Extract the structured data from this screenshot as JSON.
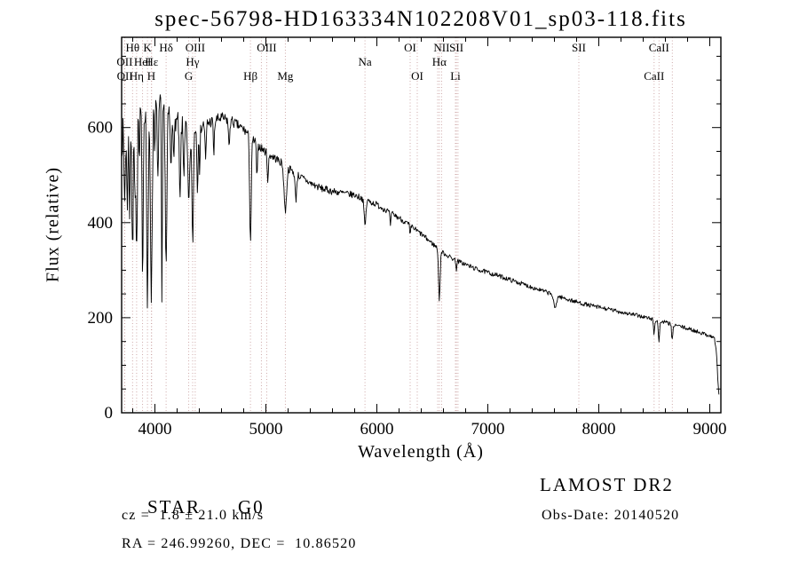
{
  "chart_data": {
    "type": "line",
    "title": "spec-56798-HD163334N102208V01_sp03-118.fits",
    "xlabel": "Wavelength (Å)",
    "ylabel": "Flux (relative)",
    "xlim": [
      3700,
      9100
    ],
    "ylim": [
      0,
      790
    ],
    "xticks": [
      4000,
      5000,
      6000,
      7000,
      8000,
      9000
    ],
    "yticks": [
      0,
      200,
      400,
      600
    ],
    "x_minor_step": 200,
    "y_minor_step": 50,
    "grid": false,
    "legend": "none",
    "spectrum_color": "#000000",
    "marker_line_color": "#c9a0a0",
    "line_label_rows": [
      {
        "labels": [
          {
            "text": "Hθ",
            "wl": 3798
          },
          {
            "text": "K",
            "wl": 3933
          },
          {
            "text": "Hδ",
            "wl": 4101
          },
          {
            "text": "OIII",
            "wl": 4363
          },
          {
            "text": "OIII",
            "wl": 5007
          },
          {
            "text": "OI",
            "wl": 6300
          },
          {
            "text": "NII",
            "wl": 6583
          },
          {
            "text": "SII",
            "wl": 6717
          },
          {
            "text": "SII",
            "wl": 7820
          },
          {
            "text": "CaII",
            "wl": 8542
          }
        ]
      },
      {
        "labels": [
          {
            "text": "OII",
            "wl": 3727
          },
          {
            "text": "HeI",
            "wl": 3889
          },
          {
            "text": "Hε",
            "wl": 3970
          },
          {
            "text": "Hγ",
            "wl": 4340
          },
          {
            "text": "Na",
            "wl": 5893
          },
          {
            "text": "Hα",
            "wl": 6563
          }
        ]
      },
      {
        "labels": [
          {
            "text": "OII",
            "wl": 3729
          },
          {
            "text": "Hη",
            "wl": 3835
          },
          {
            "text": "H",
            "wl": 3968
          },
          {
            "text": "G",
            "wl": 4305
          },
          {
            "text": "Hβ",
            "wl": 4861
          },
          {
            "text": "Mg",
            "wl": 5175
          },
          {
            "text": "OI",
            "wl": 6364
          },
          {
            "text": "Li",
            "wl": 6708
          },
          {
            "text": "CaII",
            "wl": 8498
          }
        ]
      }
    ],
    "extra_markers": [
      4959,
      6548,
      6731,
      8662
    ],
    "continuum": [
      [
        3700,
        580
      ],
      [
        3740,
        600
      ],
      [
        3800,
        615
      ],
      [
        3850,
        630
      ],
      [
        3900,
        645
      ],
      [
        3950,
        650
      ],
      [
        4000,
        655
      ],
      [
        4060,
        645
      ],
      [
        4120,
        630
      ],
      [
        4200,
        612
      ],
      [
        4300,
        600
      ],
      [
        4400,
        602
      ],
      [
        4500,
        612
      ],
      [
        4600,
        620
      ],
      [
        4700,
        612
      ],
      [
        4800,
        596
      ],
      [
        4900,
        570
      ],
      [
        5000,
        548
      ],
      [
        5100,
        533
      ],
      [
        5200,
        515
      ],
      [
        5300,
        498
      ],
      [
        5400,
        483
      ],
      [
        5500,
        472
      ],
      [
        5600,
        466
      ],
      [
        5700,
        462
      ],
      [
        5800,
        458
      ],
      [
        5900,
        448
      ],
      [
        6000,
        438
      ],
      [
        6100,
        424
      ],
      [
        6200,
        410
      ],
      [
        6300,
        394
      ],
      [
        6400,
        376
      ],
      [
        6500,
        356
      ],
      [
        6600,
        336
      ],
      [
        6700,
        322
      ],
      [
        6800,
        312
      ],
      [
        6900,
        302
      ],
      [
        7000,
        295
      ],
      [
        7100,
        288
      ],
      [
        7200,
        280
      ],
      [
        7300,
        272
      ],
      [
        7400,
        264
      ],
      [
        7500,
        256
      ],
      [
        7600,
        248
      ],
      [
        7700,
        240
      ],
      [
        7800,
        233
      ],
      [
        7900,
        227
      ],
      [
        8000,
        222
      ],
      [
        8100,
        217
      ],
      [
        8200,
        212
      ],
      [
        8300,
        207
      ],
      [
        8400,
        202
      ],
      [
        8500,
        196
      ],
      [
        8600,
        190
      ],
      [
        8700,
        184
      ],
      [
        8800,
        177
      ],
      [
        8900,
        170
      ],
      [
        9000,
        162
      ],
      [
        9040,
        158
      ],
      [
        9060,
        130
      ],
      [
        9072,
        70
      ],
      [
        9083,
        35
      ]
    ],
    "absorption_lines": [
      [
        3727,
        140,
        6
      ],
      [
        3750,
        170,
        5
      ],
      [
        3771,
        180,
        5
      ],
      [
        3798,
        290,
        6
      ],
      [
        3820,
        130,
        4
      ],
      [
        3835,
        300,
        6
      ],
      [
        3860,
        120,
        4
      ],
      [
        3889,
        330,
        6
      ],
      [
        3933,
        430,
        7
      ],
      [
        3968,
        400,
        8
      ],
      [
        4000,
        100,
        4
      ],
      [
        4026,
        180,
        5
      ],
      [
        4063,
        430,
        4
      ],
      [
        4101,
        330,
        7
      ],
      [
        4144,
        120,
        5
      ],
      [
        4172,
        100,
        4
      ],
      [
        4226,
        170,
        6
      ],
      [
        4260,
        100,
        5
      ],
      [
        4305,
        160,
        9
      ],
      [
        4340,
        240,
        7
      ],
      [
        4383,
        130,
        5
      ],
      [
        4404,
        100,
        4
      ],
      [
        4457,
        80,
        5
      ],
      [
        4531,
        70,
        5
      ],
      [
        4668,
        60,
        5
      ],
      [
        4861,
        220,
        7
      ],
      [
        4920,
        70,
        5
      ],
      [
        5018,
        60,
        5
      ],
      [
        5175,
        95,
        11
      ],
      [
        5270,
        55,
        7
      ],
      [
        5893,
        55,
        8
      ],
      [
        6122,
        25,
        5
      ],
      [
        6300,
        22,
        4
      ],
      [
        6563,
        105,
        7
      ],
      [
        6717,
        18,
        4
      ],
      [
        7605,
        28,
        12
      ],
      [
        8498,
        30,
        5
      ],
      [
        8542,
        42,
        6
      ],
      [
        8662,
        34,
        6
      ]
    ],
    "noise": {
      "seed": 7,
      "amplitude_by_wavelength": [
        [
          3700,
          42
        ],
        [
          4150,
          24
        ],
        [
          4500,
          13
        ],
        [
          5000,
          9
        ],
        [
          5800,
          7
        ],
        [
          6600,
          5
        ],
        [
          9100,
          4
        ]
      ]
    },
    "sample_step": 5
  },
  "footer": {
    "object_type": "STAR",
    "subclass": "G0",
    "cz": "cz =  1.8 ± 21.0 km/s",
    "radec": "RA = 246.99260, DEC =  10.86520",
    "survey": "LAMOST DR2",
    "obs_date": "Obs-Date: 20140520"
  }
}
